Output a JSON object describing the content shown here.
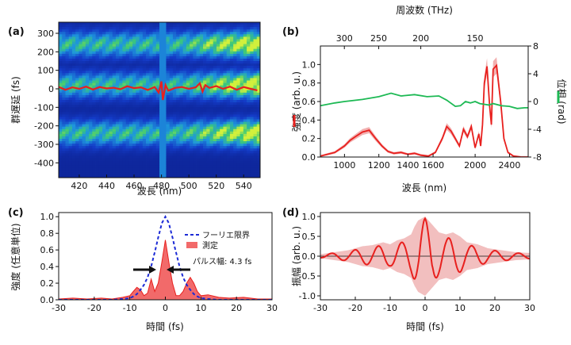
{
  "chart_data": [
    {
      "panel": "(a)",
      "type": "heatmap",
      "xlabel": "波長 (nm)",
      "ylabel": "群遅延 (fs)",
      "xlim": [
        405,
        552
      ],
      "ylim": [
        -480,
        360
      ],
      "xticks": [
        420,
        440,
        460,
        480,
        500,
        520,
        540
      ],
      "yticks": [
        300,
        200,
        100,
        0,
        -100,
        -200,
        -300,
        -400
      ],
      "bands_fs": [
        240,
        20,
        -240
      ],
      "overlay_color": "#e8201e",
      "overlay": {
        "x": [
          405,
          410,
          415,
          420,
          425,
          430,
          435,
          440,
          445,
          450,
          455,
          460,
          465,
          470,
          475,
          478,
          480,
          481,
          483,
          485,
          490,
          495,
          500,
          505,
          508,
          510,
          512,
          515,
          520,
          525,
          530,
          535,
          540,
          545,
          550
        ],
        "y": [
          10,
          -5,
          8,
          0,
          12,
          -4,
          10,
          2,
          6,
          -2,
          14,
          4,
          8,
          -6,
          10,
          -20,
          40,
          -60,
          20,
          -10,
          5,
          10,
          0,
          8,
          30,
          -15,
          20,
          5,
          15,
          0,
          12,
          -5,
          10,
          0,
          -8
        ]
      }
    },
    {
      "panel": "(b)",
      "type": "line",
      "xlabel": "波長 (nm)",
      "x2label": "周波数 (THz)",
      "ylabel": "強度 (arb. u.)",
      "y2label": "位相 (rad)",
      "xscale": "log",
      "xlim": [
        880,
        2650
      ],
      "ylim": [
        0,
        1.2
      ],
      "y2lim": [
        -8,
        8
      ],
      "xticks": [
        1000,
        1200,
        1400,
        1600,
        2000,
        2400
      ],
      "yticks": [
        0.0,
        0.2,
        0.4,
        0.6,
        0.8,
        1.0
      ],
      "y2ticks": [
        8,
        4,
        0,
        -4,
        -8
      ],
      "x2ticks": [
        300,
        250,
        200,
        150
      ],
      "series": [
        {
          "color": "#e8201e",
          "x": [
            880,
            950,
            1000,
            1030,
            1060,
            1100,
            1140,
            1180,
            1220,
            1260,
            1300,
            1350,
            1400,
            1450,
            1500,
            1560,
            1620,
            1680,
            1720,
            1760,
            1800,
            1840,
            1880,
            1920,
            1960,
            2000,
            2040,
            2060,
            2080,
            2100,
            2130,
            2160,
            2180,
            2200,
            2240,
            2290,
            2330,
            2380,
            2450,
            2550,
            2650
          ],
          "y": [
            0.01,
            0.05,
            0.12,
            0.18,
            0.22,
            0.27,
            0.29,
            0.2,
            0.12,
            0.06,
            0.04,
            0.05,
            0.03,
            0.04,
            0.02,
            0.01,
            0.05,
            0.2,
            0.33,
            0.28,
            0.2,
            0.12,
            0.3,
            0.22,
            0.33,
            0.1,
            0.25,
            0.12,
            0.35,
            0.8,
            0.98,
            0.55,
            0.35,
            0.95,
            0.99,
            0.6,
            0.2,
            0.05,
            0.01,
            0.0,
            0.0
          ]
        },
        {
          "color": "#1db954",
          "x": [
            880,
            950,
            1000,
            1100,
            1200,
            1280,
            1350,
            1450,
            1550,
            1650,
            1720,
            1800,
            1850,
            1900,
            1950,
            2000,
            2050,
            2100,
            2150,
            2200,
            2300,
            2400,
            2500,
            2600,
            2650
          ],
          "y": [
            -0.6,
            -0.2,
            0.0,
            0.3,
            0.7,
            1.2,
            0.8,
            1.0,
            0.7,
            0.8,
            0.2,
            -0.7,
            -0.6,
            0.0,
            -0.2,
            0.0,
            -0.3,
            -0.4,
            -0.5,
            -0.3,
            -0.6,
            -0.7,
            -1.0,
            -0.9,
            -0.9
          ]
        }
      ]
    },
    {
      "panel": "(c)",
      "type": "line",
      "xlabel": "時間 (fs)",
      "ylabel": "強度 (任意単位)",
      "xlim": [
        -30,
        30
      ],
      "ylim": [
        0,
        1.05
      ],
      "xticks": [
        -30,
        -20,
        -10,
        0,
        10,
        20,
        30
      ],
      "yticks": [
        0.0,
        0.2,
        0.4,
        0.6,
        0.8,
        1.0
      ],
      "legend": [
        "フーリエ限界",
        "測定"
      ],
      "annotation": "パルス幅: 4.3 fs",
      "measured_color": "#e8201e",
      "limit_color": "#1c2bd6",
      "t": [
        -30,
        -26,
        -22,
        -18,
        -15,
        -12,
        -10,
        -9,
        -8,
        -7,
        -6,
        -5,
        -4,
        -3,
        -2,
        -1,
        0,
        1,
        2,
        3,
        4,
        5,
        6,
        7,
        8,
        9,
        10,
        12,
        15,
        18,
        22,
        26,
        30
      ],
      "measured": [
        0.01,
        0.02,
        0.01,
        0.02,
        0.01,
        0.03,
        0.05,
        0.1,
        0.15,
        0.12,
        0.05,
        0.08,
        0.25,
        0.1,
        0.2,
        0.45,
        0.72,
        0.45,
        0.2,
        0.05,
        0.05,
        0.1,
        0.2,
        0.27,
        0.2,
        0.1,
        0.05,
        0.06,
        0.03,
        0.02,
        0.03,
        0.01,
        0.01
      ],
      "limit": [
        0,
        0,
        0,
        0,
        0,
        0.01,
        0.02,
        0.04,
        0.07,
        0.12,
        0.18,
        0.27,
        0.4,
        0.57,
        0.75,
        0.92,
        1.0,
        0.92,
        0.75,
        0.57,
        0.4,
        0.27,
        0.18,
        0.12,
        0.07,
        0.04,
        0.02,
        0.01,
        0,
        0,
        0,
        0,
        0
      ]
    },
    {
      "panel": "(d)",
      "type": "line",
      "xlabel": "時間 (fs)",
      "ylabel": "振幅 (arb. u.)",
      "xlim": [
        -30,
        30
      ],
      "ylim": [
        -1.1,
        1.1
      ],
      "xticks": [
        -30,
        -20,
        -10,
        0,
        10,
        20,
        30
      ],
      "yticks": [
        1.0,
        0.5,
        0.0,
        -0.5,
        -1.0
      ],
      "line_color": "#e8201e",
      "band_color": "#eeaaaa",
      "t": [
        -30,
        -26,
        -22,
        -18,
        -15,
        -12,
        -10,
        -8,
        -6,
        -4,
        -3,
        -2,
        -1,
        0,
        1,
        2,
        3,
        4,
        6,
        8,
        10,
        12,
        15,
        18,
        22,
        26,
        30
      ],
      "envelope": [
        0.05,
        0.1,
        0.15,
        0.25,
        0.28,
        0.35,
        0.3,
        0.4,
        0.45,
        0.55,
        0.75,
        0.9,
        0.95,
        1.0,
        0.9,
        0.8,
        0.7,
        0.6,
        0.55,
        0.6,
        0.5,
        0.35,
        0.3,
        0.2,
        0.15,
        0.1,
        0.08
      ]
    }
  ]
}
